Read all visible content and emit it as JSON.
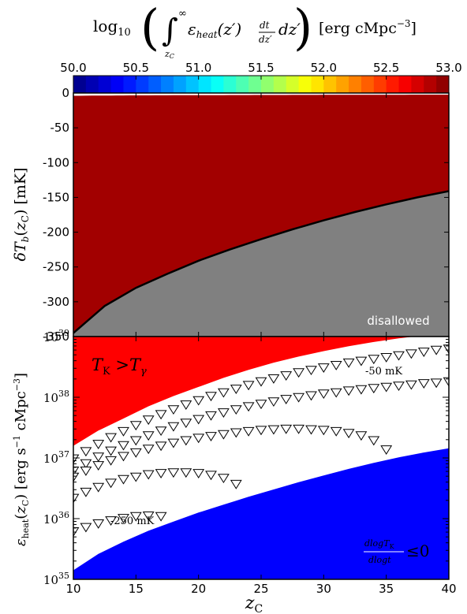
{
  "chart_data": [
    {
      "type": "colorbar",
      "title": "log10 ( ∫ ε_heat(z') dt/dz' dz' )  [erg cMpc^-3]",
      "ticks": [
        "50.0",
        "50.5",
        "51.0",
        "51.5",
        "52.0",
        "52.5",
        "53.0"
      ],
      "range": [
        50.0,
        53.0
      ],
      "colormap": "jet"
    },
    {
      "type": "heatmap",
      "ylabel": "δT_b(z_C) [mK]",
      "xlim": [
        10,
        40
      ],
      "ylim": [
        -350,
        0
      ],
      "yticks": [
        "0",
        "-50",
        "-100",
        "-150",
        "-200",
        "-250",
        "-300",
        "-350"
      ],
      "boundary": {
        "x": [
          10,
          12.5,
          15,
          17.5,
          20,
          22.5,
          25,
          27.5,
          30,
          32.5,
          35,
          37.5,
          40
        ],
        "y": [
          -345,
          -306,
          -280,
          -260,
          -241,
          -225,
          -210,
          -196,
          -183,
          -171,
          -160,
          -150,
          -141
        ]
      },
      "region_label": "disallowed",
      "region_color": "#808080"
    },
    {
      "type": "scatter",
      "xlabel": "z_C",
      "ylabel": "ε_heat(z_C) [erg s^-1 cMpc^-3]",
      "xlim": [
        10,
        40
      ],
      "ylim": [
        1e+35,
        1e+39
      ],
      "yscale": "log",
      "xticks": [
        "10",
        "15",
        "20",
        "25",
        "30",
        "35",
        "40"
      ],
      "yticks": [
        "10^35",
        "10^36",
        "10^37",
        "10^38",
        "10^39"
      ],
      "upper_region": {
        "label": "T_K > T_γ",
        "color": "#ff0000",
        "x": [
          10,
          12,
          14,
          16,
          18,
          20,
          22,
          24,
          26,
          28,
          30,
          32,
          34,
          36,
          38,
          40
        ],
        "logy": [
          37.2,
          37.45,
          37.65,
          37.85,
          38.02,
          38.17,
          38.32,
          38.45,
          38.57,
          38.67,
          38.76,
          38.84,
          38.91,
          38.97,
          39.02,
          39.06
        ]
      },
      "lower_region": {
        "label": "dlogT_K / dlogt ≤ 0",
        "color": "#0000ff",
        "x": [
          10,
          12,
          14,
          16,
          18,
          20,
          22,
          24,
          26,
          28,
          30,
          32,
          34,
          36,
          38,
          40
        ],
        "logy": [
          35.15,
          35.42,
          35.62,
          35.8,
          35.95,
          36.1,
          36.23,
          36.36,
          36.48,
          36.6,
          36.71,
          36.82,
          36.92,
          37.01,
          37.09,
          37.16
        ]
      },
      "annotations": [
        "-50 mK",
        "-250 mK"
      ],
      "series": [
        {
          "x": [
            10,
            11,
            12,
            13,
            14,
            15,
            16,
            17,
            18,
            19,
            20,
            21,
            22,
            23,
            24,
            25,
            26,
            27,
            28,
            29,
            30,
            31,
            32,
            33,
            34,
            35,
            36,
            37,
            38,
            39,
            40
          ],
          "logy": [
            37.0,
            37.12,
            37.24,
            37.35,
            37.45,
            37.55,
            37.64,
            37.73,
            37.81,
            37.89,
            37.96,
            38.03,
            38.09,
            38.15,
            38.21,
            38.27,
            38.32,
            38.37,
            38.42,
            38.46,
            38.5,
            38.54,
            38.58,
            38.61,
            38.64,
            38.67,
            38.7,
            38.73,
            38.76,
            38.79,
            38.81
          ]
        },
        {
          "x": [
            10,
            11,
            12,
            13,
            14,
            15,
            16,
            17,
            18,
            19,
            20,
            21,
            22,
            23,
            24,
            25,
            26,
            27,
            28,
            29,
            30,
            31,
            32,
            33,
            34,
            35,
            36,
            37,
            38,
            39,
            40
          ],
          "logy": [
            36.8,
            36.92,
            37.03,
            37.13,
            37.22,
            37.3,
            37.38,
            37.46,
            37.53,
            37.59,
            37.65,
            37.71,
            37.76,
            37.81,
            37.86,
            37.9,
            37.94,
            37.98,
            38.01,
            38.04,
            38.07,
            38.09,
            38.12,
            38.14,
            38.16,
            38.18,
            38.2,
            38.22,
            38.24,
            38.25,
            38.27
          ]
        },
        {
          "x": [
            10,
            11,
            12,
            13,
            14,
            15,
            16,
            17,
            18,
            19,
            20,
            21,
            22,
            23,
            24,
            25,
            26,
            27,
            28,
            29,
            30,
            31,
            32,
            33,
            34,
            35
          ],
          "logy": [
            36.7,
            36.8,
            36.89,
            36.97,
            37.04,
            37.1,
            37.16,
            37.21,
            37.26,
            37.3,
            37.34,
            37.37,
            37.4,
            37.43,
            37.45,
            37.47,
            37.48,
            37.49,
            37.49,
            37.48,
            37.47,
            37.45,
            37.42,
            37.38,
            37.3,
            37.15
          ]
        },
        {
          "x": [
            10,
            11,
            12,
            13,
            14,
            15,
            16,
            17,
            18,
            19,
            20,
            21,
            22,
            23
          ],
          "logy": [
            36.35,
            36.45,
            36.53,
            36.6,
            36.66,
            36.7,
            36.74,
            36.76,
            36.77,
            36.77,
            36.76,
            36.73,
            36.68,
            36.58
          ]
        },
        {
          "x": [
            10,
            11,
            12,
            13,
            14,
            15,
            16,
            17
          ],
          "logy": [
            35.8,
            35.87,
            35.93,
            35.98,
            36.02,
            36.05,
            36.06,
            36.05
          ]
        }
      ]
    }
  ]
}
